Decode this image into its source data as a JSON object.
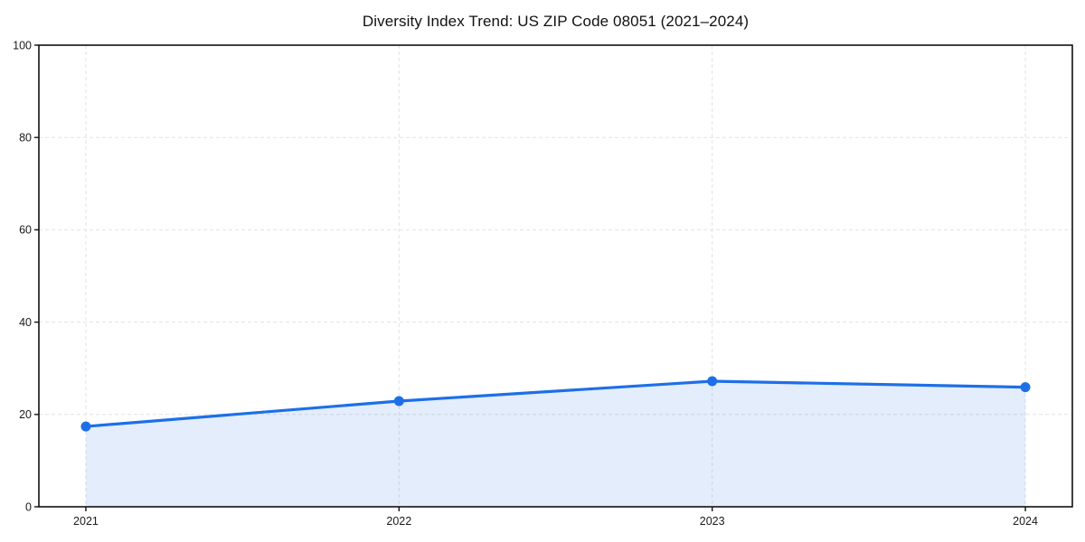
{
  "chart_data": {
    "type": "line",
    "title": "Diversity Index Trend: US ZIP Code 08051 (2021–2024)",
    "x": [
      2021,
      2022,
      2023,
      2024
    ],
    "series": [
      {
        "name": "Diversity Index",
        "values": [
          17.4,
          22.9,
          27.2,
          25.9
        ]
      }
    ],
    "xlabel": "",
    "ylabel": "",
    "xticks": [
      "2021",
      "2022",
      "2023",
      "2024"
    ],
    "yticks": [
      0,
      20,
      40,
      60,
      80,
      100
    ],
    "ylim": [
      0,
      100
    ],
    "x_margin_frac": 0.05,
    "grid": true,
    "grid_style": "dashed",
    "legend": false,
    "area_fill": true,
    "markers": true,
    "colors": {
      "line": "#1d6fe8",
      "marker": "#1d6fe8",
      "area": "rgba(29,111,232,0.12)",
      "grid": "#e2e2e2",
      "spine": "#111111",
      "tick_label": "#1a1a1a",
      "title": "#111111",
      "background": "#ffffff"
    }
  }
}
